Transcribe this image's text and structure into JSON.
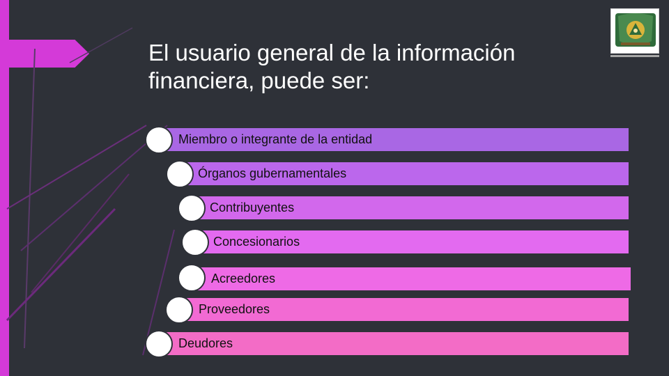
{
  "slide": {
    "title": "El usuario general de la información financiera, puede ser:",
    "logo": {
      "icon": "institution-seal-icon"
    },
    "items": [
      {
        "label": "Miembro o integrante de la entidad",
        "color": "#a967e4"
      },
      {
        "label": "Órganos gubernamentales",
        "color": "#bb67ec"
      },
      {
        "label": "Contribuyentes",
        "color": "#d268ec"
      },
      {
        "label": "Concesionarios",
        "color": "#e36af0"
      },
      {
        "label": "Acreedores",
        "color": "#ee6ae6"
      },
      {
        "label": "Proveedores",
        "color": "#f26ad3"
      },
      {
        "label": "Deudores",
        "color": "#f36cc6"
      }
    ],
    "colors": {
      "background": "#2e3138",
      "accent": "#d43ad8",
      "text": "#ffffff"
    }
  }
}
